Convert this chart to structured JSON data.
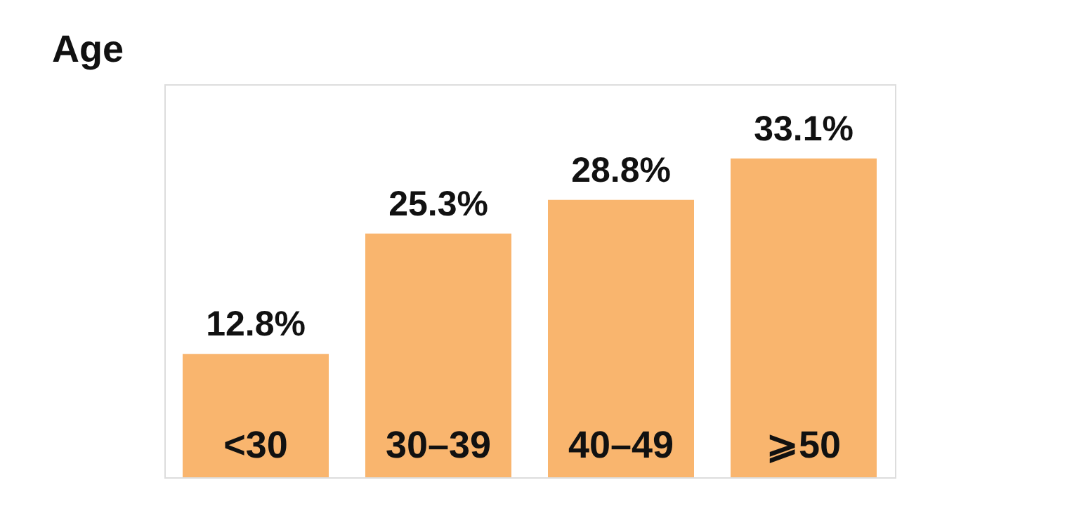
{
  "chart_data": {
    "type": "bar",
    "title": "Age",
    "categories": [
      "<30",
      "30–39",
      "40–49",
      "⩾50"
    ],
    "values": [
      12.8,
      25.3,
      28.8,
      33.1
    ],
    "value_labels": [
      "12.8%",
      "25.3%",
      "28.8%",
      "33.1%"
    ],
    "color": "#f9b56e"
  }
}
